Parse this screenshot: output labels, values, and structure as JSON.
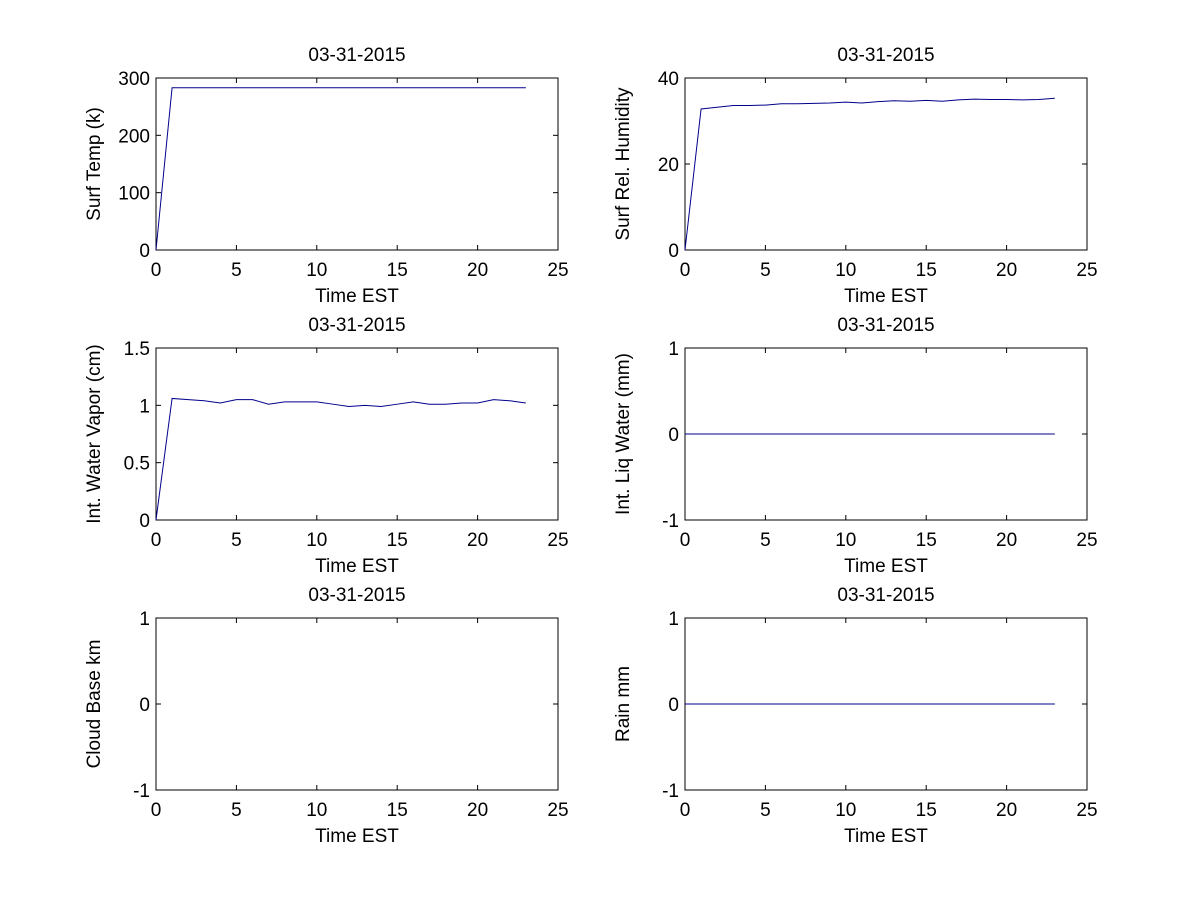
{
  "chart_data": [
    {
      "type": "line",
      "title": "03-31-2015",
      "xlabel": "Time EST",
      "ylabel": "Surf Temp (k)",
      "xlim": [
        0,
        25
      ],
      "ylim": [
        0,
        300
      ],
      "xticks": [
        0,
        5,
        10,
        15,
        20,
        25
      ],
      "yticks": [
        0,
        100,
        200,
        300
      ],
      "x": [
        0,
        1,
        2,
        3,
        4,
        5,
        6,
        7,
        8,
        9,
        10,
        11,
        12,
        13,
        14,
        15,
        16,
        17,
        18,
        19,
        20,
        21,
        22,
        23
      ],
      "y": [
        0,
        283,
        283,
        283,
        283,
        283,
        283,
        283,
        283,
        283,
        283,
        283,
        283,
        283,
        283,
        283,
        283,
        283,
        283,
        283,
        283,
        283,
        283,
        283
      ],
      "color": "#00008b",
      "grid": false
    },
    {
      "type": "line",
      "title": "03-31-2015",
      "xlabel": "Time EST",
      "ylabel": "Surf Rel. Humidity",
      "xlim": [
        0,
        25
      ],
      "ylim": [
        0,
        40
      ],
      "xticks": [
        0,
        5,
        10,
        15,
        20,
        25
      ],
      "yticks": [
        0,
        20,
        40
      ],
      "x": [
        0,
        1,
        2,
        3,
        4,
        5,
        6,
        7,
        8,
        9,
        10,
        11,
        12,
        13,
        14,
        15,
        16,
        17,
        18,
        19,
        20,
        21,
        22,
        23
      ],
      "y": [
        0,
        32.8,
        33.2,
        33.6,
        33.6,
        33.7,
        34.0,
        34.0,
        34.1,
        34.2,
        34.4,
        34.2,
        34.5,
        34.7,
        34.6,
        34.8,
        34.6,
        34.9,
        35.1,
        35.0,
        35.0,
        34.9,
        35.0,
        35.3
      ],
      "color": "#00008b",
      "grid": false
    },
    {
      "type": "line",
      "title": "03-31-2015",
      "xlabel": "Time EST",
      "ylabel": "Int. Water Vapor (cm)",
      "xlim": [
        0,
        25
      ],
      "ylim": [
        0,
        1.5
      ],
      "xticks": [
        0,
        5,
        10,
        15,
        20,
        25
      ],
      "yticks": [
        0,
        0.5,
        1,
        1.5
      ],
      "x": [
        0,
        1,
        2,
        3,
        4,
        5,
        6,
        7,
        8,
        9,
        10,
        11,
        12,
        13,
        14,
        15,
        16,
        17,
        18,
        19,
        20,
        21,
        22,
        23
      ],
      "y": [
        0,
        1.06,
        1.05,
        1.04,
        1.02,
        1.05,
        1.05,
        1.01,
        1.03,
        1.03,
        1.03,
        1.01,
        0.99,
        1.0,
        0.99,
        1.01,
        1.03,
        1.01,
        1.01,
        1.02,
        1.02,
        1.05,
        1.04,
        1.02
      ],
      "color": "#00008b",
      "grid": false
    },
    {
      "type": "line",
      "title": "03-31-2015",
      "xlabel": "Time EST",
      "ylabel": "Int. Liq Water (mm)",
      "xlim": [
        0,
        25
      ],
      "ylim": [
        -1,
        1
      ],
      "xticks": [
        0,
        5,
        10,
        15,
        20,
        25
      ],
      "yticks": [
        -1,
        0,
        1
      ],
      "x": [
        0,
        1,
        2,
        3,
        4,
        5,
        6,
        7,
        8,
        9,
        10,
        11,
        12,
        13,
        14,
        15,
        16,
        17,
        18,
        19,
        20,
        21,
        22,
        23
      ],
      "y": [
        0,
        0,
        0,
        0,
        0,
        0,
        0,
        0,
        0,
        0,
        0,
        0,
        0,
        0,
        0,
        0,
        0,
        0,
        0,
        0,
        0,
        0,
        0,
        0
      ],
      "color": "#00008b",
      "grid": false
    },
    {
      "type": "line",
      "title": "03-31-2015",
      "xlabel": "Time EST",
      "ylabel": "Cloud Base km",
      "xlim": [
        0,
        25
      ],
      "ylim": [
        -1,
        1
      ],
      "xticks": [
        0,
        5,
        10,
        15,
        20,
        25
      ],
      "yticks": [
        -1,
        0,
        1
      ],
      "x": [],
      "y": [],
      "color": "#00008b",
      "grid": false
    },
    {
      "type": "line",
      "title": "03-31-2015",
      "xlabel": "Time EST",
      "ylabel": "Rain mm",
      "xlim": [
        0,
        25
      ],
      "ylim": [
        -1,
        1
      ],
      "xticks": [
        0,
        5,
        10,
        15,
        20,
        25
      ],
      "yticks": [
        -1,
        0,
        1
      ],
      "x": [
        0,
        1,
        2,
        3,
        4,
        5,
        6,
        7,
        8,
        9,
        10,
        11,
        12,
        13,
        14,
        15,
        16,
        17,
        18,
        19,
        20,
        21,
        22,
        23
      ],
      "y": [
        0,
        0,
        0,
        0,
        0,
        0,
        0,
        0,
        0,
        0,
        0,
        0,
        0,
        0,
        0,
        0,
        0,
        0,
        0,
        0,
        0,
        0,
        0,
        0
      ],
      "color": "#00008b",
      "grid": false
    }
  ]
}
